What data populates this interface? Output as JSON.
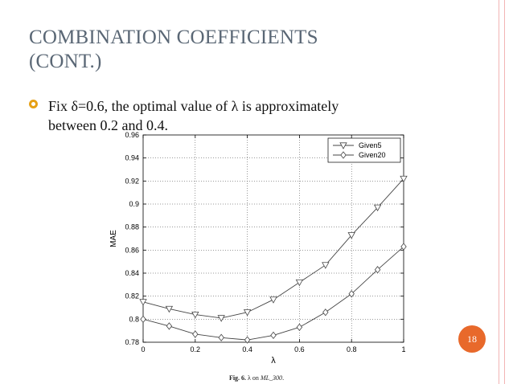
{
  "slide": {
    "title_line1": "COMBINATION COEFFICIENTS",
    "title_line2": "(CONT.)",
    "bullet_line1": "Fix δ=0.6, the optimal value of λ is approximately",
    "bullet_line2": "between 0.2 and 0.4.",
    "page_number": "18",
    "caption_prefix": "Fig. 6.",
    "caption_symbol": "λ on",
    "caption_dataset": "ML_300",
    "caption_suffix": ".",
    "colors": {
      "title": "#5a6775",
      "bullet": "#e6a015",
      "page_badge": "#e8692b",
      "border": "#f2b4b4"
    }
  },
  "chart_data": {
    "type": "line",
    "xlabel": "λ",
    "ylabel": "MAE",
    "xlim": [
      0,
      1
    ],
    "ylim": [
      0.78,
      0.96
    ],
    "xticks": [
      "0",
      "0.2",
      "0.4",
      "0.6",
      "0.8",
      "1"
    ],
    "yticks": [
      "0.78",
      "0.8",
      "0.82",
      "0.84",
      "0.86",
      "0.88",
      "0.9",
      "0.92",
      "0.94",
      "0.96"
    ],
    "grid": true,
    "legend_position": "top-right",
    "x": [
      0,
      0.1,
      0.2,
      0.3,
      0.4,
      0.5,
      0.6,
      0.7,
      0.8,
      0.9,
      1.0
    ],
    "series": [
      {
        "name": "Given5",
        "marker": "triangle-down",
        "values": [
          0.815,
          0.809,
          0.804,
          0.801,
          0.806,
          0.817,
          0.832,
          0.847,
          0.873,
          0.897,
          0.922
        ]
      },
      {
        "name": "Given20",
        "marker": "diamond",
        "values": [
          0.8,
          0.794,
          0.787,
          0.784,
          0.782,
          0.786,
          0.793,
          0.806,
          0.822,
          0.843,
          0.863
        ]
      }
    ]
  }
}
